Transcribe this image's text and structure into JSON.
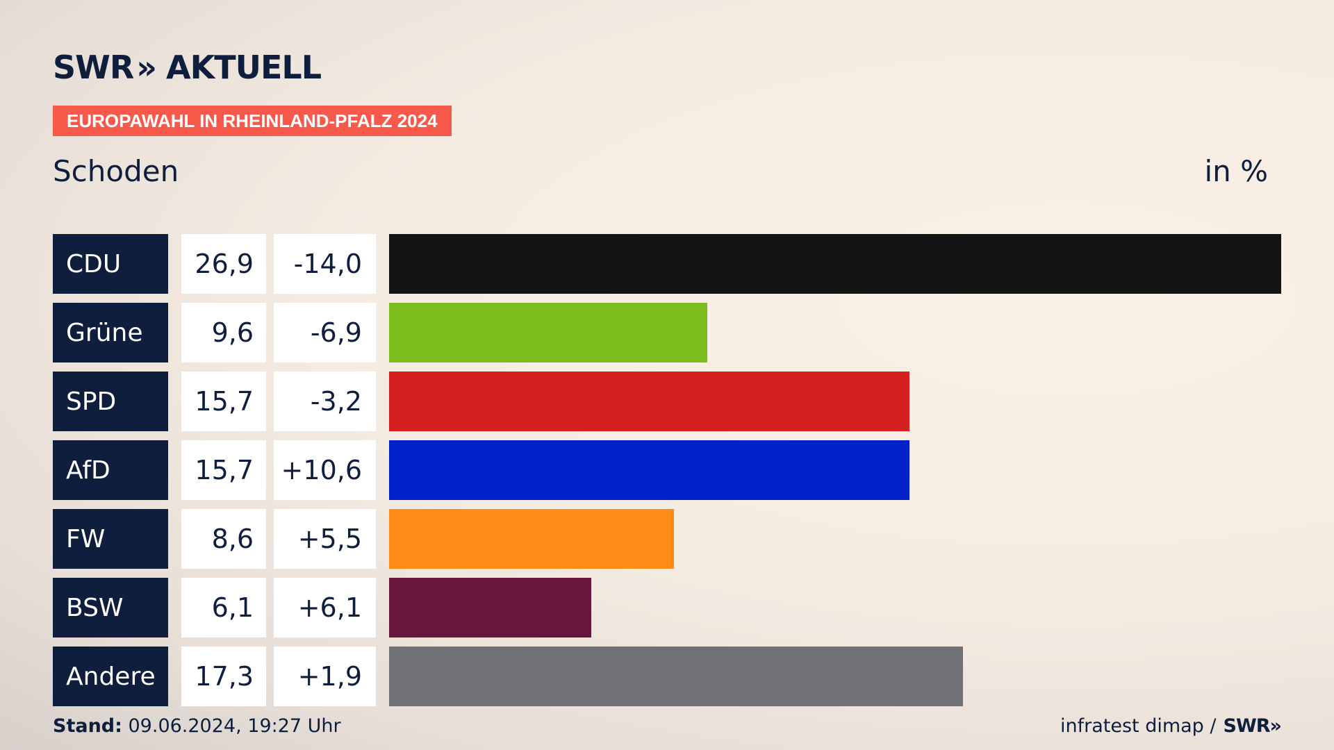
{
  "brand": {
    "swr": "SWR",
    "chevrons": "»",
    "aktuell": "AKTUELL"
  },
  "tag": "EUROPAWAHL IN RHEINLAND-PFALZ 2024",
  "footer": {
    "stand_label": "Stand:",
    "stand_value": " 09.06.2024, 19:27 Uhr",
    "source": "infratest dimap /",
    "source_brand": "SWR",
    "source_chevrons": "»"
  },
  "colors": {
    "CDU": "#131313",
    "Grüne": "#7abd1c",
    "SPD": "#d61f1f",
    "AfD": "#0020c8",
    "FW": "#fe8c17",
    "BSW": "#67173e",
    "Andere": "#707174"
  },
  "chart_data": {
    "type": "bar",
    "title": "Schoden",
    "unit_label": "in %",
    "xlim": [
      0,
      26.9
    ],
    "categories": [
      "CDU",
      "Grüne",
      "SPD",
      "AfD",
      "FW",
      "BSW",
      "Andere"
    ],
    "values": [
      26.9,
      9.6,
      15.7,
      15.7,
      8.6,
      6.1,
      17.3
    ],
    "value_labels": [
      "26,9",
      "9,6",
      "15,7",
      "15,7",
      "8,6",
      "6,1",
      "17,3"
    ],
    "changes": [
      -14.0,
      -6.9,
      -3.2,
      10.6,
      5.5,
      6.1,
      1.9
    ],
    "change_labels": [
      "-14,0",
      "-6,9",
      "-3,2",
      "+10,6",
      "+5,5",
      "+6,1",
      "+1,9"
    ]
  }
}
